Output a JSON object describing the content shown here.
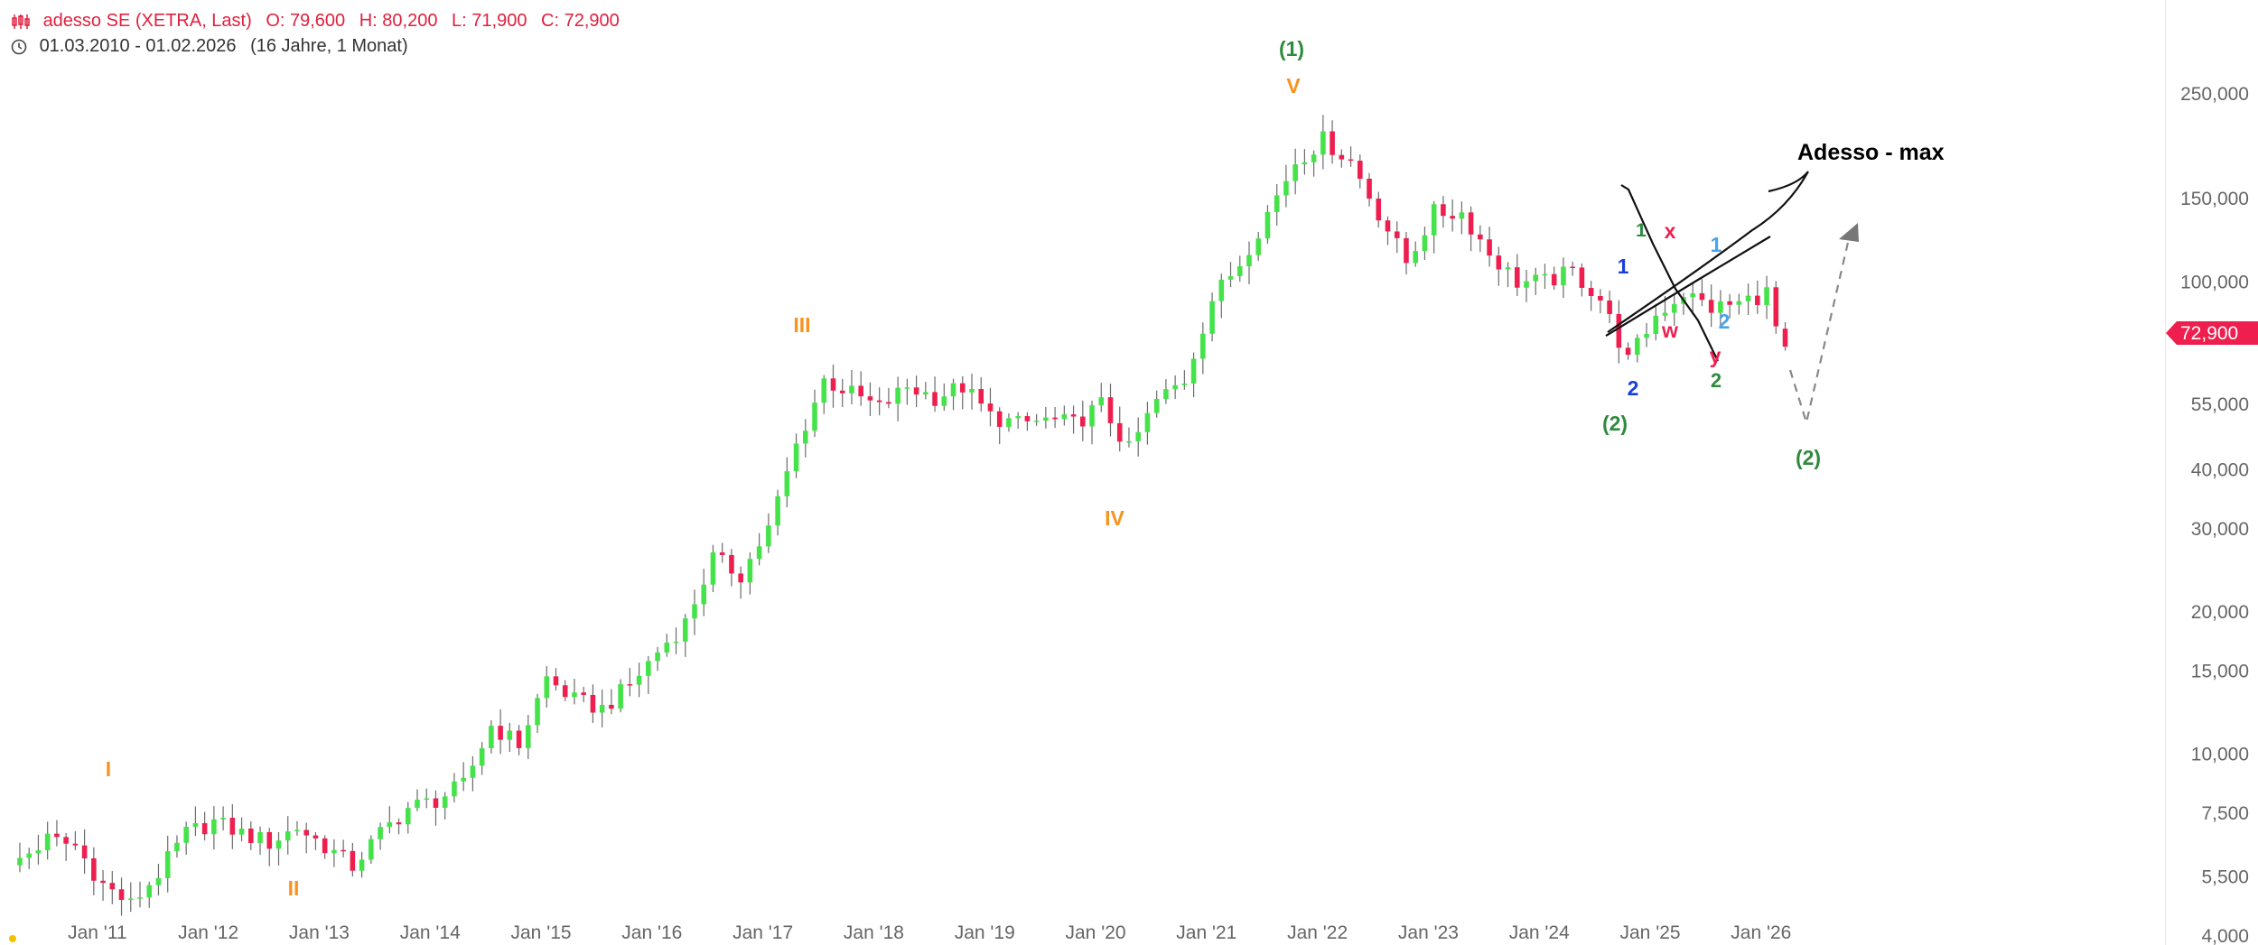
{
  "header": {
    "symbol": "adesso SE (XETRA, Last)",
    "open": "O: 79,600",
    "high": "H: 80,200",
    "low": "L: 71,900",
    "close": "C: 72,900",
    "range": "01.03.2010 - 01.02.2026",
    "duration": "(16 Jahre, 1 Monat)"
  },
  "colors": {
    "up": "#45e34a",
    "down": "#ee1f4f",
    "wick": "#6b6b6b",
    "green_label": "#2f8a3e",
    "orange_label": "#f7931e",
    "blue_label": "#1a3fd9",
    "lightblue_label": "#4aa3e8",
    "red_label": "#ee1f4f"
  },
  "last_price": "72,900",
  "chart_data": {
    "type": "candlestick",
    "scale": "log",
    "interval": "monthly",
    "x_tick_labels": [
      "Jan '11",
      "Jan '12",
      "Jan '13",
      "Jan '14",
      "Jan '15",
      "Jan '16",
      "Jan '17",
      "Jan '18",
      "Jan '19",
      "Jan '20",
      "Jan '21",
      "Jan '22",
      "Jan '23",
      "Jan '24",
      "Jan '25",
      "Jan '26"
    ],
    "y_ticks": [
      {
        "value": 250000,
        "label": "250,000"
      },
      {
        "value": 150000,
        "label": "150,000"
      },
      {
        "value": 100000,
        "label": "100,000"
      },
      {
        "value": 55000,
        "label": "55,000"
      },
      {
        "value": 40000,
        "label": "40,000"
      },
      {
        "value": 30000,
        "label": "30,000"
      },
      {
        "value": 20000,
        "label": "20,000"
      },
      {
        "value": 15000,
        "label": "15,000"
      },
      {
        "value": 10000,
        "label": "10,000"
      },
      {
        "value": 7500,
        "label": "7,500"
      },
      {
        "value": 5500,
        "label": "5,500"
      },
      {
        "value": 4000,
        "label": "4,000"
      }
    ],
    "ylim": [
      4000,
      300000
    ],
    "anchors": [
      [
        "2010-03",
        6000
      ],
      [
        "2010-06",
        6600
      ],
      [
        "2010-09",
        6400
      ],
      [
        "2010-12",
        5300
      ],
      [
        "2011-03",
        4800
      ],
      [
        "2011-06",
        5600
      ],
      [
        "2011-09",
        6800
      ],
      [
        "2011-12",
        7200
      ],
      [
        "2012-03",
        6800
      ],
      [
        "2012-06",
        6500
      ],
      [
        "2012-09",
        7000
      ],
      [
        "2012-12",
        6400
      ],
      [
        "2013-03",
        5800
      ],
      [
        "2013-06",
        6800
      ],
      [
        "2013-09",
        7700
      ],
      [
        "2013-12",
        8000
      ],
      [
        "2014-03",
        8600
      ],
      [
        "2014-06",
        11500
      ],
      [
        "2014-09",
        10500
      ],
      [
        "2014-12",
        14500
      ],
      [
        "2015-03",
        13000
      ],
      [
        "2015-06",
        12500
      ],
      [
        "2015-09",
        14000
      ],
      [
        "2015-12",
        16500
      ],
      [
        "2016-03",
        19000
      ],
      [
        "2016-06",
        26000
      ],
      [
        "2016-09",
        24000
      ],
      [
        "2016-12",
        30000
      ],
      [
        "2017-03",
        45000
      ],
      [
        "2017-06",
        62000
      ],
      [
        "2017-09",
        58000
      ],
      [
        "2017-12",
        54000
      ],
      [
        "2018-03",
        60000
      ],
      [
        "2018-06",
        57000
      ],
      [
        "2018-09",
        60000
      ],
      [
        "2018-12",
        52000
      ],
      [
        "2019-03",
        50000
      ],
      [
        "2019-06",
        51000
      ],
      [
        "2019-09",
        50000
      ],
      [
        "2019-12",
        55000
      ],
      [
        "2020-03",
        44000
      ],
      [
        "2020-06",
        56000
      ],
      [
        "2020-09",
        62000
      ],
      [
        "2020-12",
        92000
      ],
      [
        "2021-03",
        110000
      ],
      [
        "2021-06",
        140000
      ],
      [
        "2021-09",
        180000
      ],
      [
        "2021-12",
        200000
      ],
      [
        "2022-03",
        180000
      ],
      [
        "2022-06",
        140000
      ],
      [
        "2022-09",
        110000
      ],
      [
        "2022-12",
        140000
      ],
      [
        "2023-03",
        140000
      ],
      [
        "2023-06",
        115000
      ],
      [
        "2023-09",
        100000
      ],
      [
        "2023-12",
        100000
      ],
      [
        "2024-03",
        105000
      ],
      [
        "2024-06",
        92000
      ],
      [
        "2024-09",
        68000
      ],
      [
        "2024-12",
        85000
      ],
      [
        "2025-03",
        95000
      ],
      [
        "2025-06",
        88000
      ],
      [
        "2025-09",
        90000
      ],
      [
        "2025-12",
        95000
      ],
      [
        "2026-01",
        79600
      ],
      [
        "2026-02",
        72900
      ]
    ]
  },
  "annotations": {
    "title": "Adesso - max",
    "wave_labels": [
      {
        "text": "(1)",
        "color": "green"
      },
      {
        "text": "V",
        "color": "orange"
      },
      {
        "text": "III",
        "color": "orange"
      },
      {
        "text": "IV",
        "color": "orange"
      },
      {
        "text": "I",
        "color": "orange"
      },
      {
        "text": "II",
        "color": "orange"
      },
      {
        "text": "(2)",
        "color": "green"
      },
      {
        "text": "(2)",
        "color": "green"
      },
      {
        "text": "1",
        "color": "blue"
      },
      {
        "text": "2",
        "color": "blue"
      },
      {
        "text": "1",
        "color": "green"
      },
      {
        "text": "2",
        "color": "green"
      },
      {
        "text": "x",
        "color": "red"
      },
      {
        "text": "w",
        "color": "red"
      },
      {
        "text": "y",
        "color": "red"
      },
      {
        "text": "1",
        "color": "lightblue"
      },
      {
        "text": "2",
        "color": "lightblue"
      }
    ]
  }
}
